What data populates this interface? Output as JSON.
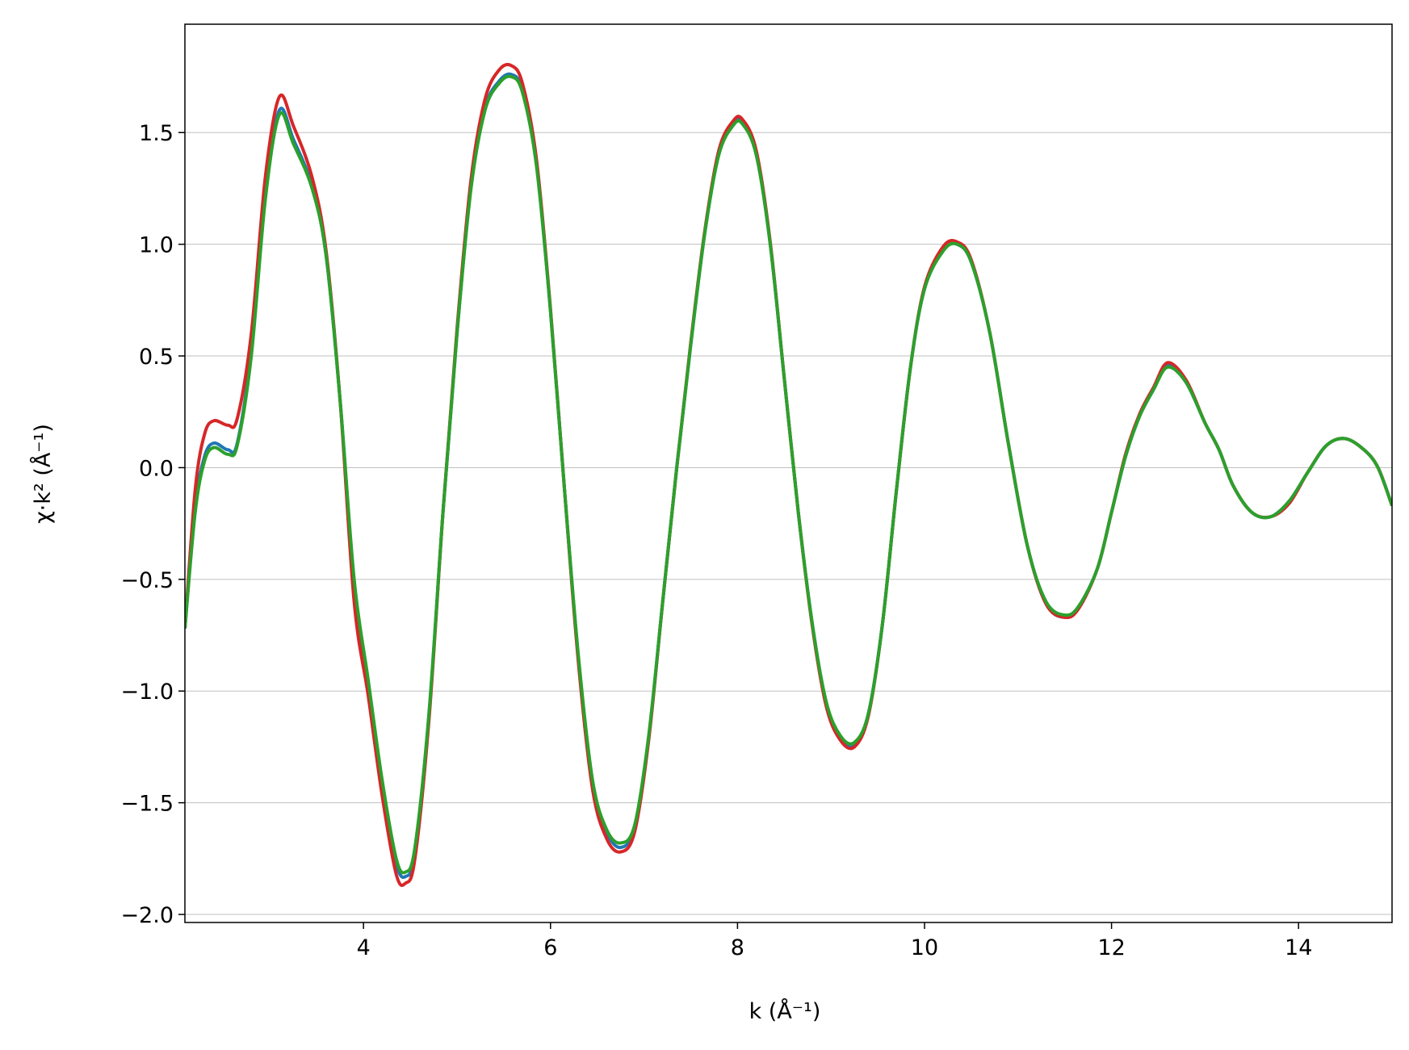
{
  "chart_data": {
    "type": "line",
    "x_label": "k (Å⁻¹)",
    "y_label": "χ·k² (Å⁻¹)",
    "xlim": [
      2.09,
      15.0
    ],
    "ylim": [
      -2.036,
      1.985
    ],
    "xticks": [
      4,
      6,
      8,
      10,
      12,
      14
    ],
    "yticks": [
      {
        "value": -2.0,
        "label": "−2.0"
      },
      {
        "value": -1.5,
        "label": "−1.5"
      },
      {
        "value": -1.0,
        "label": "−1.0"
      },
      {
        "value": -0.5,
        "label": "−0.5"
      },
      {
        "value": 0.0,
        "label": "0.0"
      },
      {
        "value": 0.5,
        "label": "0.5"
      },
      {
        "value": 1.0,
        "label": "1.0"
      },
      {
        "value": 1.5,
        "label": "1.5"
      }
    ],
    "grid": "y",
    "x": [
      2.09,
      2.2,
      2.3,
      2.4,
      2.55,
      2.65,
      2.8,
      2.95,
      3.1,
      3.25,
      3.45,
      3.6,
      3.75,
      3.9,
      4.05,
      4.2,
      4.35,
      4.45,
      4.55,
      4.7,
      4.85,
      5.0,
      5.15,
      5.3,
      5.45,
      5.58,
      5.7,
      5.85,
      6.0,
      6.15,
      6.3,
      6.45,
      6.6,
      6.75,
      6.9,
      7.05,
      7.2,
      7.35,
      7.5,
      7.65,
      7.8,
      7.95,
      8.05,
      8.2,
      8.35,
      8.5,
      8.65,
      8.8,
      8.95,
      9.1,
      9.25,
      9.4,
      9.55,
      9.7,
      9.85,
      10.0,
      10.2,
      10.35,
      10.5,
      10.7,
      10.9,
      11.1,
      11.3,
      11.5,
      11.65,
      11.85,
      12.0,
      12.15,
      12.3,
      12.45,
      12.6,
      12.8,
      13.0,
      13.15,
      13.3,
      13.5,
      13.7,
      13.9,
      14.1,
      14.3,
      14.5,
      14.7,
      14.85,
      15.0
    ],
    "series": [
      {
        "color": "#1f77b4",
        "values": [
          -0.72,
          -0.18,
          0.05,
          0.11,
          0.08,
          0.11,
          0.52,
          1.22,
          1.6,
          1.47,
          1.26,
          0.95,
          0.3,
          -0.52,
          -0.97,
          -1.42,
          -1.77,
          -1.83,
          -1.72,
          -1.11,
          -0.2,
          0.6,
          1.26,
          1.61,
          1.73,
          1.76,
          1.69,
          1.36,
          0.7,
          -0.1,
          -0.86,
          -1.41,
          -1.63,
          -1.7,
          -1.61,
          -1.21,
          -0.6,
          0.0,
          0.55,
          1.05,
          1.41,
          1.54,
          1.55,
          1.41,
          1.0,
          0.4,
          -0.2,
          -0.7,
          -1.06,
          -1.21,
          -1.24,
          -1.1,
          -0.7,
          -0.1,
          0.45,
          0.8,
          0.98,
          1.0,
          0.92,
          0.6,
          0.1,
          -0.35,
          -0.61,
          -0.67,
          -0.62,
          -0.45,
          -0.2,
          0.05,
          0.23,
          0.35,
          0.46,
          0.38,
          0.2,
          0.08,
          -0.08,
          -0.2,
          -0.22,
          -0.15,
          -0.02,
          0.1,
          0.13,
          0.08,
          0.0,
          -0.17
        ]
      },
      {
        "color": "#d62728",
        "values": [
          -0.72,
          -0.1,
          0.15,
          0.21,
          0.19,
          0.22,
          0.6,
          1.3,
          1.66,
          1.53,
          1.3,
          0.97,
          0.3,
          -0.6,
          -1.02,
          -1.47,
          -1.82,
          -1.86,
          -1.75,
          -1.13,
          -0.2,
          0.62,
          1.29,
          1.65,
          1.78,
          1.8,
          1.72,
          1.38,
          0.71,
          -0.1,
          -0.88,
          -1.44,
          -1.66,
          -1.72,
          -1.63,
          -1.22,
          -0.6,
          0.0,
          0.56,
          1.06,
          1.42,
          1.55,
          1.56,
          1.42,
          1.01,
          0.4,
          -0.2,
          -0.71,
          -1.07,
          -1.22,
          -1.25,
          -1.11,
          -0.7,
          -0.1,
          0.45,
          0.81,
          0.99,
          1.01,
          0.93,
          0.6,
          0.1,
          -0.35,
          -0.61,
          -0.67,
          -0.63,
          -0.45,
          -0.2,
          0.06,
          0.24,
          0.36,
          0.47,
          0.39,
          0.2,
          0.08,
          -0.08,
          -0.2,
          -0.22,
          -0.16,
          -0.02,
          0.1,
          0.13,
          0.08,
          0.0,
          -0.17
        ]
      },
      {
        "color": "#2ca02c",
        "values": [
          -0.72,
          -0.2,
          0.03,
          0.09,
          0.06,
          0.1,
          0.5,
          1.2,
          1.58,
          1.45,
          1.25,
          0.95,
          0.3,
          -0.5,
          -0.95,
          -1.4,
          -1.75,
          -1.81,
          -1.7,
          -1.1,
          -0.2,
          0.6,
          1.25,
          1.6,
          1.72,
          1.75,
          1.68,
          1.35,
          0.7,
          -0.1,
          -0.85,
          -1.4,
          -1.62,
          -1.68,
          -1.6,
          -1.2,
          -0.6,
          0.0,
          0.55,
          1.05,
          1.4,
          1.53,
          1.54,
          1.4,
          1.0,
          0.4,
          -0.2,
          -0.7,
          -1.05,
          -1.2,
          -1.23,
          -1.1,
          -0.7,
          -0.1,
          0.45,
          0.8,
          0.97,
          1.0,
          0.92,
          0.6,
          0.1,
          -0.35,
          -0.6,
          -0.66,
          -0.62,
          -0.45,
          -0.2,
          0.05,
          0.23,
          0.35,
          0.45,
          0.38,
          0.2,
          0.08,
          -0.08,
          -0.2,
          -0.22,
          -0.15,
          -0.02,
          0.1,
          0.13,
          0.08,
          0.0,
          -0.17
        ]
      }
    ]
  }
}
